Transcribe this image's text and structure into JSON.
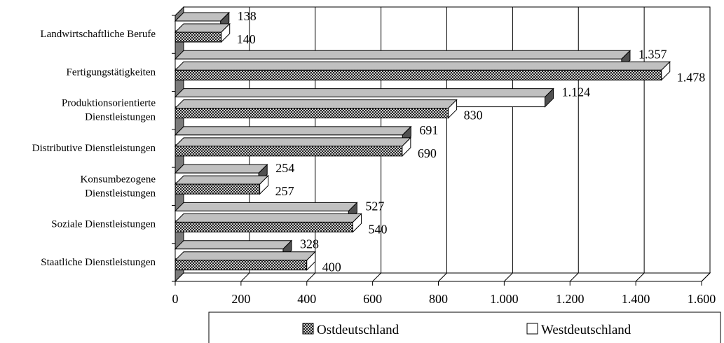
{
  "chart_data": {
    "type": "bar",
    "orientation": "horizontal",
    "three_d": true,
    "categories": [
      "Landwirtschaftliche Berufe",
      "Fertigungstätigkeiten",
      "Produktionsorientierte Dienstleistungen",
      "Distributive Dienstleistungen",
      "Konsumbezogene Dienstleistungen",
      "Soziale Dienstleistungen",
      "Staatliche Dienstleistungen"
    ],
    "category_lines": [
      [
        "Landwirtschaftliche Berufe"
      ],
      [
        "Fertigungstätigkeiten"
      ],
      [
        "Produktionsorientierte",
        "Dienstleistungen"
      ],
      [
        "Distributive Dienstleistungen"
      ],
      [
        "Konsumbezogene",
        "Dienstleistungen"
      ],
      [
        "Soziale Dienstleistungen"
      ],
      [
        "Staatliche Dienstleistungen"
      ]
    ],
    "series": [
      {
        "name": "Westdeutschland",
        "fill": "#ffffff",
        "values": [
          138,
          1357,
          1124,
          691,
          254,
          527,
          328
        ],
        "labels": [
          "138",
          "1.357",
          "1.124",
          "691",
          "254",
          "527",
          "328"
        ]
      },
      {
        "name": "Ostdeutschland",
        "fill": "crosshatch",
        "values": [
          140,
          1478,
          830,
          690,
          257,
          540,
          400
        ],
        "labels": [
          "140",
          "1.478",
          "830",
          "690",
          "257",
          "540",
          "400"
        ]
      }
    ],
    "xlim": [
      0,
      1600
    ],
    "xticks": [
      0,
      200,
      400,
      600,
      800,
      1000,
      1200,
      1400,
      1600
    ],
    "xtick_labels": [
      "0",
      "200",
      "400",
      "600",
      "800",
      "1.000",
      "1.200",
      "1.400",
      "1.600"
    ],
    "grid": true,
    "legend": {
      "position": "bottom",
      "order": [
        "Ostdeutschland",
        "Westdeutschland"
      ]
    },
    "title": "",
    "xlabel": "",
    "ylabel": ""
  }
}
